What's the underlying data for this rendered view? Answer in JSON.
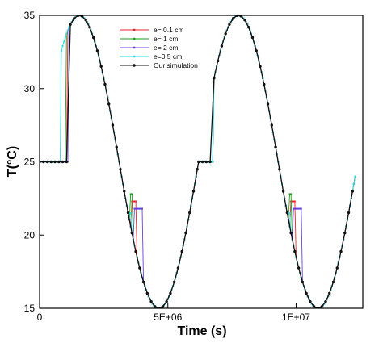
{
  "chart_data": {
    "type": "line",
    "title": "",
    "xlabel": "Time (s)",
    "ylabel": "T(°C)",
    "xlim": [
      0,
      12600000
    ],
    "ylim": [
      15,
      35
    ],
    "x_ticks": [
      {
        "value": 0,
        "label": "0"
      },
      {
        "value": 5000000,
        "label": "5E+06"
      },
      {
        "value": 10000000,
        "label": "1E+07"
      }
    ],
    "y_ticks": [
      {
        "value": 15,
        "label": "15"
      },
      {
        "value": 20,
        "label": "20"
      },
      {
        "value": 25,
        "label": "25"
      },
      {
        "value": 30,
        "label": "30"
      },
      {
        "value": 35,
        "label": "35"
      }
    ],
    "grid": false,
    "legend_position": "top-center",
    "model": {
      "mean": 25,
      "amplitude": 10,
      "period": 6200000,
      "peak_time": 1550000,
      "t_start": 0,
      "t_end": 12300000,
      "cycle_start": 0,
      "freeze_exit_time": 600000
    },
    "series": [
      {
        "name": "e= 0.1 cm",
        "color": "#e8262b",
        "marker": "square",
        "melt_lag": 500000,
        "freeze_lag": 170000,
        "freeze_point_time": 3600000,
        "freeze_point_temp": 22.3
      },
      {
        "name": "e= 1 cm",
        "color": "#19a319",
        "marker": "square",
        "melt_lag": 450000,
        "freeze_lag": 100000,
        "freeze_point_time": 3520000,
        "freeze_point_temp": 22.8
      },
      {
        "name": "e= 2 cm",
        "color": "#6a3fe0",
        "marker": "square",
        "melt_lag": 550000,
        "freeze_lag": 300000,
        "freeze_point_time": 3700000,
        "freeze_point_temp": 21.8
      },
      {
        "name": "e=0.5 cm",
        "color": "#28dede",
        "marker": "square",
        "melt_lag": 250000,
        "freeze_lag": 80000,
        "freeze_point_time": 3480000,
        "freeze_point_temp": 21.5
      },
      {
        "name": "Our simulation",
        "color": "#111111",
        "marker": "circle",
        "melt_lag": 480000,
        "freeze_lag": 0,
        "freeze_point_time": 3320000,
        "freeze_point_temp": 25.0
      }
    ]
  }
}
